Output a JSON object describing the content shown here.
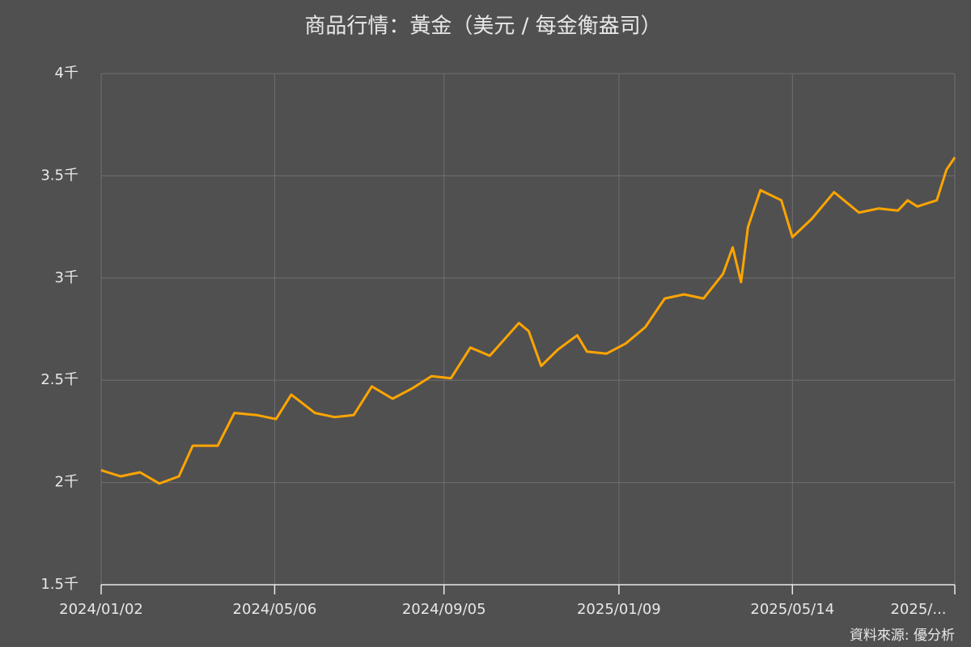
{
  "chart_data": {
    "type": "line",
    "title": "商品行情：黃金（美元 / 每金衡盎司）",
    "source": "資料來源: 優分析",
    "color": "#ffa500",
    "grid": true,
    "x": [
      "2024/01/02",
      "2024/01/16",
      "2024/01/30",
      "2024/02/13",
      "2024/02/27",
      "2024/03/08",
      "2024/03/26",
      "2024/04/07",
      "2024/04/23",
      "2024/05/07",
      "2024/05/18",
      "2024/06/04",
      "2024/06/18",
      "2024/07/02",
      "2024/07/15",
      "2024/07/30",
      "2024/08/13",
      "2024/08/27",
      "2024/09/10",
      "2024/09/24",
      "2024/10/08",
      "2024/10/29",
      "2024/11/05",
      "2024/11/14",
      "2024/11/26",
      "2024/12/10",
      "2024/12/17",
      "2024/12/31",
      "2025/01/14",
      "2025/01/28",
      "2025/02/11",
      "2025/02/25",
      "2025/03/11",
      "2025/03/25",
      "2025/04/01",
      "2025/04/07",
      "2025/04/12",
      "2025/04/21",
      "2025/05/06",
      "2025/05/14",
      "2025/05/28",
      "2025/06/13",
      "2025/07/01",
      "2025/07/15",
      "2025/07/29",
      "2025/08/05",
      "2025/08/12",
      "2025/08/26",
      "2025/09/02",
      "2025/09/08"
    ],
    "values": [
      2060,
      2030,
      2050,
      1995,
      2030,
      2180,
      2180,
      2340,
      2330,
      2310,
      2430,
      2340,
      2320,
      2330,
      2470,
      2410,
      2460,
      2520,
      2510,
      2660,
      2620,
      2780,
      2740,
      2570,
      2650,
      2720,
      2640,
      2630,
      2680,
      2760,
      2900,
      2920,
      2900,
      3020,
      3150,
      2980,
      3250,
      3430,
      3380,
      3200,
      3290,
      3420,
      3320,
      3340,
      3330,
      3380,
      3350,
      3380,
      3530,
      3590
    ],
    "xlim": [
      "2024/01/02",
      "2025/09/08"
    ],
    "xticks": [
      "2024/01/02",
      "2024/05/06",
      "2024/09/05",
      "2025/01/09",
      "2025/05/14",
      {
        "value": "2025/09/08",
        "label": "2025/..."
      }
    ],
    "ylim": [
      1500,
      4000
    ],
    "yticks": [
      {
        "value": 1500,
        "label": "1.5千"
      },
      {
        "value": 2000,
        "label": "2千"
      },
      {
        "value": 2500,
        "label": "2.5千"
      },
      {
        "value": 3000,
        "label": "3千"
      },
      {
        "value": 3500,
        "label": "3.5千"
      },
      {
        "value": 4000,
        "label": "4千"
      }
    ]
  }
}
